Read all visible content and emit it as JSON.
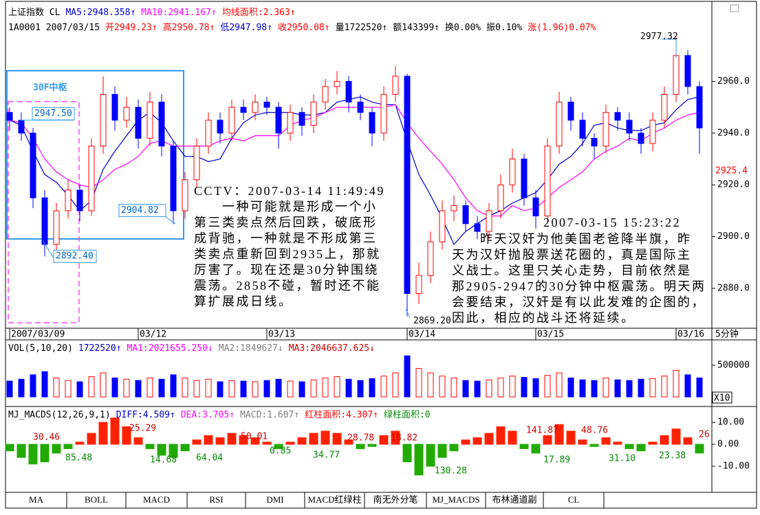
{
  "header": {
    "line1": [
      {
        "text": "上证指数 CL",
        "color": "#000000"
      },
      {
        "text": "MA5:2948.358↑",
        "color": "#0000cc"
      },
      {
        "text": "MA10:2941.167↑",
        "color": "#ff00ff"
      },
      {
        "text": "均线面积:2.363↑",
        "color": "#ff0000"
      }
    ],
    "line2": [
      {
        "text": "1A0001 2007/03/15",
        "color": "#000000"
      },
      {
        "text": "开2949.23↑",
        "color": "#ff0000"
      },
      {
        "text": "高2950.78↑",
        "color": "#ff0000"
      },
      {
        "text": "低2947.98↑",
        "color": "#0000cc"
      },
      {
        "text": "收2950.08↑",
        "color": "#ff0000"
      },
      {
        "text": "量1722520↑",
        "color": "#000000"
      },
      {
        "text": "额143399↑",
        "color": "#000000"
      },
      {
        "text": "换0.00%",
        "color": "#000000"
      },
      {
        "text": "振0.10%",
        "color": "#000000"
      },
      {
        "text": "涨(1.96)0.07%",
        "color": "#ff0000"
      }
    ]
  },
  "period": "5分钟",
  "tabs": [
    "MA",
    "BOLL",
    "MACD",
    "RSI",
    "DMI",
    "MACD红绿柱",
    "南无外分笔",
    "MJ_MACDS",
    "布林通道副",
    "CL"
  ],
  "chart_data": [
    {
      "type": "candlestick",
      "categories": [
        "2007/03/09",
        null,
        null,
        null,
        null,
        null,
        null,
        null,
        null,
        null,
        null,
        "03/12",
        null,
        null,
        null,
        null,
        null,
        null,
        null,
        null,
        null,
        null,
        "03/13",
        null,
        null,
        null,
        null,
        null,
        null,
        null,
        null,
        null,
        null,
        null,
        "03/14",
        null,
        null,
        null,
        null,
        null,
        null,
        null,
        null,
        null,
        null,
        "03/15",
        null,
        null,
        null,
        null,
        null,
        null,
        null,
        null,
        null,
        null,
        null,
        "03/16",
        null,
        null
      ],
      "ohlc": [
        [
          2948,
          2950,
          2941,
          2945
        ],
        [
          2945,
          2948,
          2937,
          2940
        ],
        [
          2940,
          2942,
          2911,
          2915
        ],
        [
          2915,
          2918,
          2892.4,
          2897
        ],
        [
          2897,
          2913,
          2894,
          2910
        ],
        [
          2910,
          2922,
          2907,
          2918
        ],
        [
          2918,
          2920,
          2906,
          2910
        ],
        [
          2910,
          2938,
          2908,
          2935
        ],
        [
          2935,
          2962,
          2932,
          2955
        ],
        [
          2955,
          2958,
          2941,
          2945
        ],
        [
          2945,
          2954,
          2942,
          2950
        ],
        [
          2950,
          2953,
          2934,
          2938
        ],
        [
          2938,
          2956,
          2935,
          2952
        ],
        [
          2952,
          2955,
          2931,
          2935
        ],
        [
          2935,
          2937,
          2904.82,
          2910
        ],
        [
          2910,
          2925,
          2907,
          2922
        ],
        [
          2922,
          2938,
          2919,
          2935
        ],
        [
          2935,
          2948,
          2932,
          2945
        ],
        [
          2945,
          2948,
          2936,
          2940
        ],
        [
          2940,
          2953,
          2937,
          2950
        ],
        [
          2950,
          2953,
          2945,
          2948
        ],
        [
          2948,
          2955,
          2945,
          2952
        ],
        [
          2952,
          2954,
          2947,
          2950
        ],
        [
          2950,
          2952,
          2934,
          2940
        ],
        [
          2940,
          2951,
          2937,
          2948
        ],
        [
          2948,
          2950,
          2939,
          2943
        ],
        [
          2943,
          2955,
          2940,
          2952
        ],
        [
          2952,
          2961,
          2949,
          2958
        ],
        [
          2958,
          2964,
          2955,
          2960
        ],
        [
          2960,
          2962,
          2948,
          2952
        ],
        [
          2952,
          2955,
          2945,
          2948
        ],
        [
          2948,
          2950,
          2935,
          2940
        ],
        [
          2940,
          2958,
          2937,
          2955
        ],
        [
          2955,
          2966,
          2952,
          2962
        ],
        [
          2962,
          2963,
          2869.2,
          2878
        ],
        [
          2878,
          2890,
          2874,
          2885
        ],
        [
          2885,
          2902,
          2882,
          2898
        ],
        [
          2898,
          2914,
          2895,
          2910
        ],
        [
          2910,
          2916,
          2906,
          2912
        ],
        [
          2912,
          2914,
          2902,
          2905
        ],
        [
          2905,
          2908,
          2899,
          2902
        ],
        [
          2902,
          2913,
          2899,
          2910
        ],
        [
          2910,
          2924,
          2907,
          2920
        ],
        [
          2920,
          2934,
          2917,
          2930
        ],
        [
          2930,
          2932,
          2912,
          2915
        ],
        [
          2915,
          2918,
          2903,
          2908
        ],
        [
          2908,
          2938,
          2905,
          2935
        ],
        [
          2935,
          2956,
          2932,
          2952
        ],
        [
          2952,
          2954,
          2941,
          2945
        ],
        [
          2945,
          2948,
          2935,
          2938
        ],
        [
          2938,
          2940,
          2930,
          2935
        ],
        [
          2935,
          2951,
          2932,
          2948
        ],
        [
          2948,
          2950,
          2941,
          2945
        ],
        [
          2945,
          2948,
          2937,
          2940
        ],
        [
          2940,
          2942,
          2932,
          2936
        ],
        [
          2936,
          2948,
          2933,
          2945
        ],
        [
          2945,
          2958,
          2942,
          2955
        ],
        [
          2955,
          2977.32,
          2952,
          2970
        ],
        [
          2970,
          2972,
          2955,
          2958
        ],
        [
          2958,
          2960,
          2932,
          2942
        ]
      ],
      "up_color": "#ff0000",
      "down_color": "#0000ff",
      "series": [
        {
          "color": "#0000cc",
          "values": [
            2945,
            2943,
            2933,
            2924,
            2921,
            2916,
            2910,
            2914,
            2926,
            2933,
            2939,
            2945,
            2948,
            2944,
            2937,
            2931,
            2931,
            2929,
            2930,
            2938,
            2944,
            2947,
            2948,
            2948,
            2948,
            2947,
            2947,
            2948,
            2952,
            2953,
            2954,
            2952,
            2951,
            2951,
            2937,
            2924,
            2916,
            2907,
            2897,
            2902,
            2905,
            2908,
            2910,
            2913,
            2915,
            2917,
            2922,
            2928,
            2931,
            2936,
            2943,
            2944,
            2942,
            2941,
            2941,
            2943,
            2944,
            2949,
            2953,
            2954
          ]
        },
        {
          "color": "#ff00ff",
          "values": [
            2945,
            2944,
            2938,
            2930,
            2925,
            2922,
            2920,
            2919,
            2922,
            2926,
            2928,
            2931,
            2936,
            2937,
            2935,
            2935,
            2935,
            2935,
            2937,
            2938,
            2937,
            2939,
            2939,
            2939,
            2943,
            2945,
            2946,
            2948,
            2950,
            2950,
            2950,
            2950,
            2950,
            2951,
            2944,
            2938,
            2933,
            2928,
            2922,
            2915,
            2910,
            2908,
            2908,
            2912,
            2910,
            2911,
            2915,
            2919,
            2922,
            2925,
            2930,
            2933,
            2935,
            2938,
            2937,
            2940,
            2942,
            2945,
            2947,
            2948
          ]
        }
      ],
      "ylim": [
        2864.6,
        2988.8
      ],
      "yticks": [
        {
          "value": 2960,
          "label": "2960.0"
        },
        {
          "value": 2940,
          "label": "2940.0"
        },
        {
          "value": 2920,
          "label": "2920.0"
        },
        {
          "value": 2900,
          "label": "2900.0"
        },
        {
          "value": 2880,
          "label": "2880.0"
        }
      ],
      "last_price": {
        "value": 2925.4,
        "label": "2925.4",
        "color": "#ff0000"
      },
      "zone_label": "30F中枢",
      "price_labels": [
        {
          "value": 2947.5,
          "label": "2947.50"
        },
        {
          "value": 2892.4,
          "label": "2892.40"
        },
        {
          "value": 2904.82,
          "label": "2904.82"
        },
        {
          "value": 2977.32,
          "label": "2977.32"
        },
        {
          "value": 2869.2,
          "label": "2869.20"
        }
      ],
      "notes": [
        {
          "title": "CCTV：2007-03-14 11:49:49",
          "lines": [
            "　　一种可能就是形成一个小",
            "第三类卖点然后回跌，破底形",
            "成背驰，一种就是不形成第三",
            "类卖点重新回到2935上，那就",
            "厉害了。现在还是30分钟围绕",
            "震荡。2858不碰，暂时还不能",
            "算扩展成日线。"
          ]
        },
        {
          "title": "2007-03-15 15:23:22",
          "lines": [
            "　　昨天汉奸为他美国老爸降半旗，昨",
            "天为汉奸抛股票送花圈的，真是国际主",
            "义战士。这里只关心走势，目前依然是",
            "那2905-2947的30分钟中枢震荡。明天两",
            "会要结束，汉奸是有以此发难的企图的，",
            "因此，相应的战斗还将延续。"
          ]
        }
      ]
    },
    {
      "type": "bar",
      "title_items": [
        {
          "text": "VOL(5,10,20)",
          "color": "#000000"
        },
        {
          "text": "1722520↑",
          "color": "#0000cc"
        },
        {
          "text": "MA1:2021655.250↓",
          "color": "#ff00ff"
        },
        {
          "text": "MA2:1849627↓",
          "color": "#808080"
        },
        {
          "text": "MA3:2046637.625↓",
          "color": "#cc0000"
        }
      ],
      "values": [
        250000,
        280000,
        350000,
        400000,
        300000,
        260000,
        240000,
        320000,
        380000,
        300000,
        280000,
        260000,
        300000,
        280000,
        350000,
        300000,
        260000,
        280000,
        240000,
        260000,
        250000,
        240000,
        260000,
        280000,
        250000,
        240000,
        270000,
        300000,
        320000,
        280000,
        260000,
        290000,
        330000,
        380000,
        650000,
        450000,
        380000,
        330000,
        300000,
        260000,
        250000,
        270000,
        300000,
        330000,
        310000,
        290000,
        340000,
        380000,
        300000,
        270000,
        260000,
        300000,
        270000,
        260000,
        280000,
        290000,
        330000,
        420000,
        350000,
        300000
      ],
      "up_color": "#ff0000",
      "down_color": "#0000ff",
      "ylim": [
        -130000,
        880000
      ],
      "yticks": [
        500000,
        0
      ],
      "unit_label": "X10"
    },
    {
      "type": "bar",
      "title_items": [
        {
          "text": "MJ_MACDS(12,26,9,1)",
          "color": "#000000"
        },
        {
          "text": "DIFF:4.509↑",
          "color": "#0000cc"
        },
        {
          "text": "DEA:3.705↑",
          "color": "#ff00ff"
        },
        {
          "text": "MACD:1.607↑",
          "color": "#808080"
        },
        {
          "text": "红柱面积:4.307↑",
          "color": "#ff0000"
        },
        {
          "text": "绿柱面积:0",
          "color": "#008800"
        }
      ],
      "values": [
        -3,
        -6,
        -9,
        -8,
        -4,
        -2,
        1,
        5,
        10,
        12,
        8,
        3,
        -2,
        -5,
        -6,
        -3,
        2,
        4,
        3,
        5,
        4,
        3,
        1,
        -2,
        1,
        3,
        5,
        6,
        5,
        2,
        -2,
        -1,
        4,
        6,
        -8,
        -14,
        -10,
        -6,
        -3,
        2,
        3,
        5,
        8,
        6,
        -2,
        -4,
        4,
        9,
        6,
        2,
        -1,
        3,
        1,
        -2,
        -3,
        1,
        4,
        7,
        3,
        -4
      ],
      "pos_color": "#ff2200",
      "neg_color": "#22aa00",
      "ylim": [
        -21.9,
        16.6
      ],
      "yticks": [
        {
          "value": 10,
          "label": "10.00"
        },
        {
          "value": 0,
          "label": "0.00"
        },
        {
          "value": -10,
          "label": "-10.00"
        }
      ],
      "area_labels": [
        {
          "text": "30.46",
          "color": "#cc0000"
        },
        {
          "text": "85.48",
          "color": "#008800"
        },
        {
          "text": "25.29",
          "color": "#cc0000"
        },
        {
          "text": "14.68",
          "color": "#008800"
        },
        {
          "text": "64.04",
          "color": "#008800"
        },
        {
          "text": "50.01",
          "color": "#cc0000"
        },
        {
          "text": "0.85",
          "color": "#008800"
        },
        {
          "text": "34.77",
          "color": "#008800"
        },
        {
          "text": "28.78",
          "color": "#cc0000"
        },
        {
          "text": "18.82",
          "color": "#cc0000"
        },
        {
          "text": "130.28",
          "color": "#008800"
        },
        {
          "text": "141.87",
          "color": "#cc0000"
        },
        {
          "text": "17.89",
          "color": "#008800"
        },
        {
          "text": "48.76",
          "color": "#cc0000"
        },
        {
          "text": "31.10",
          "color": "#008800"
        },
        {
          "text": "23.38",
          "color": "#008800"
        },
        {
          "text": "26",
          "color": "#cc0000"
        }
      ]
    }
  ]
}
